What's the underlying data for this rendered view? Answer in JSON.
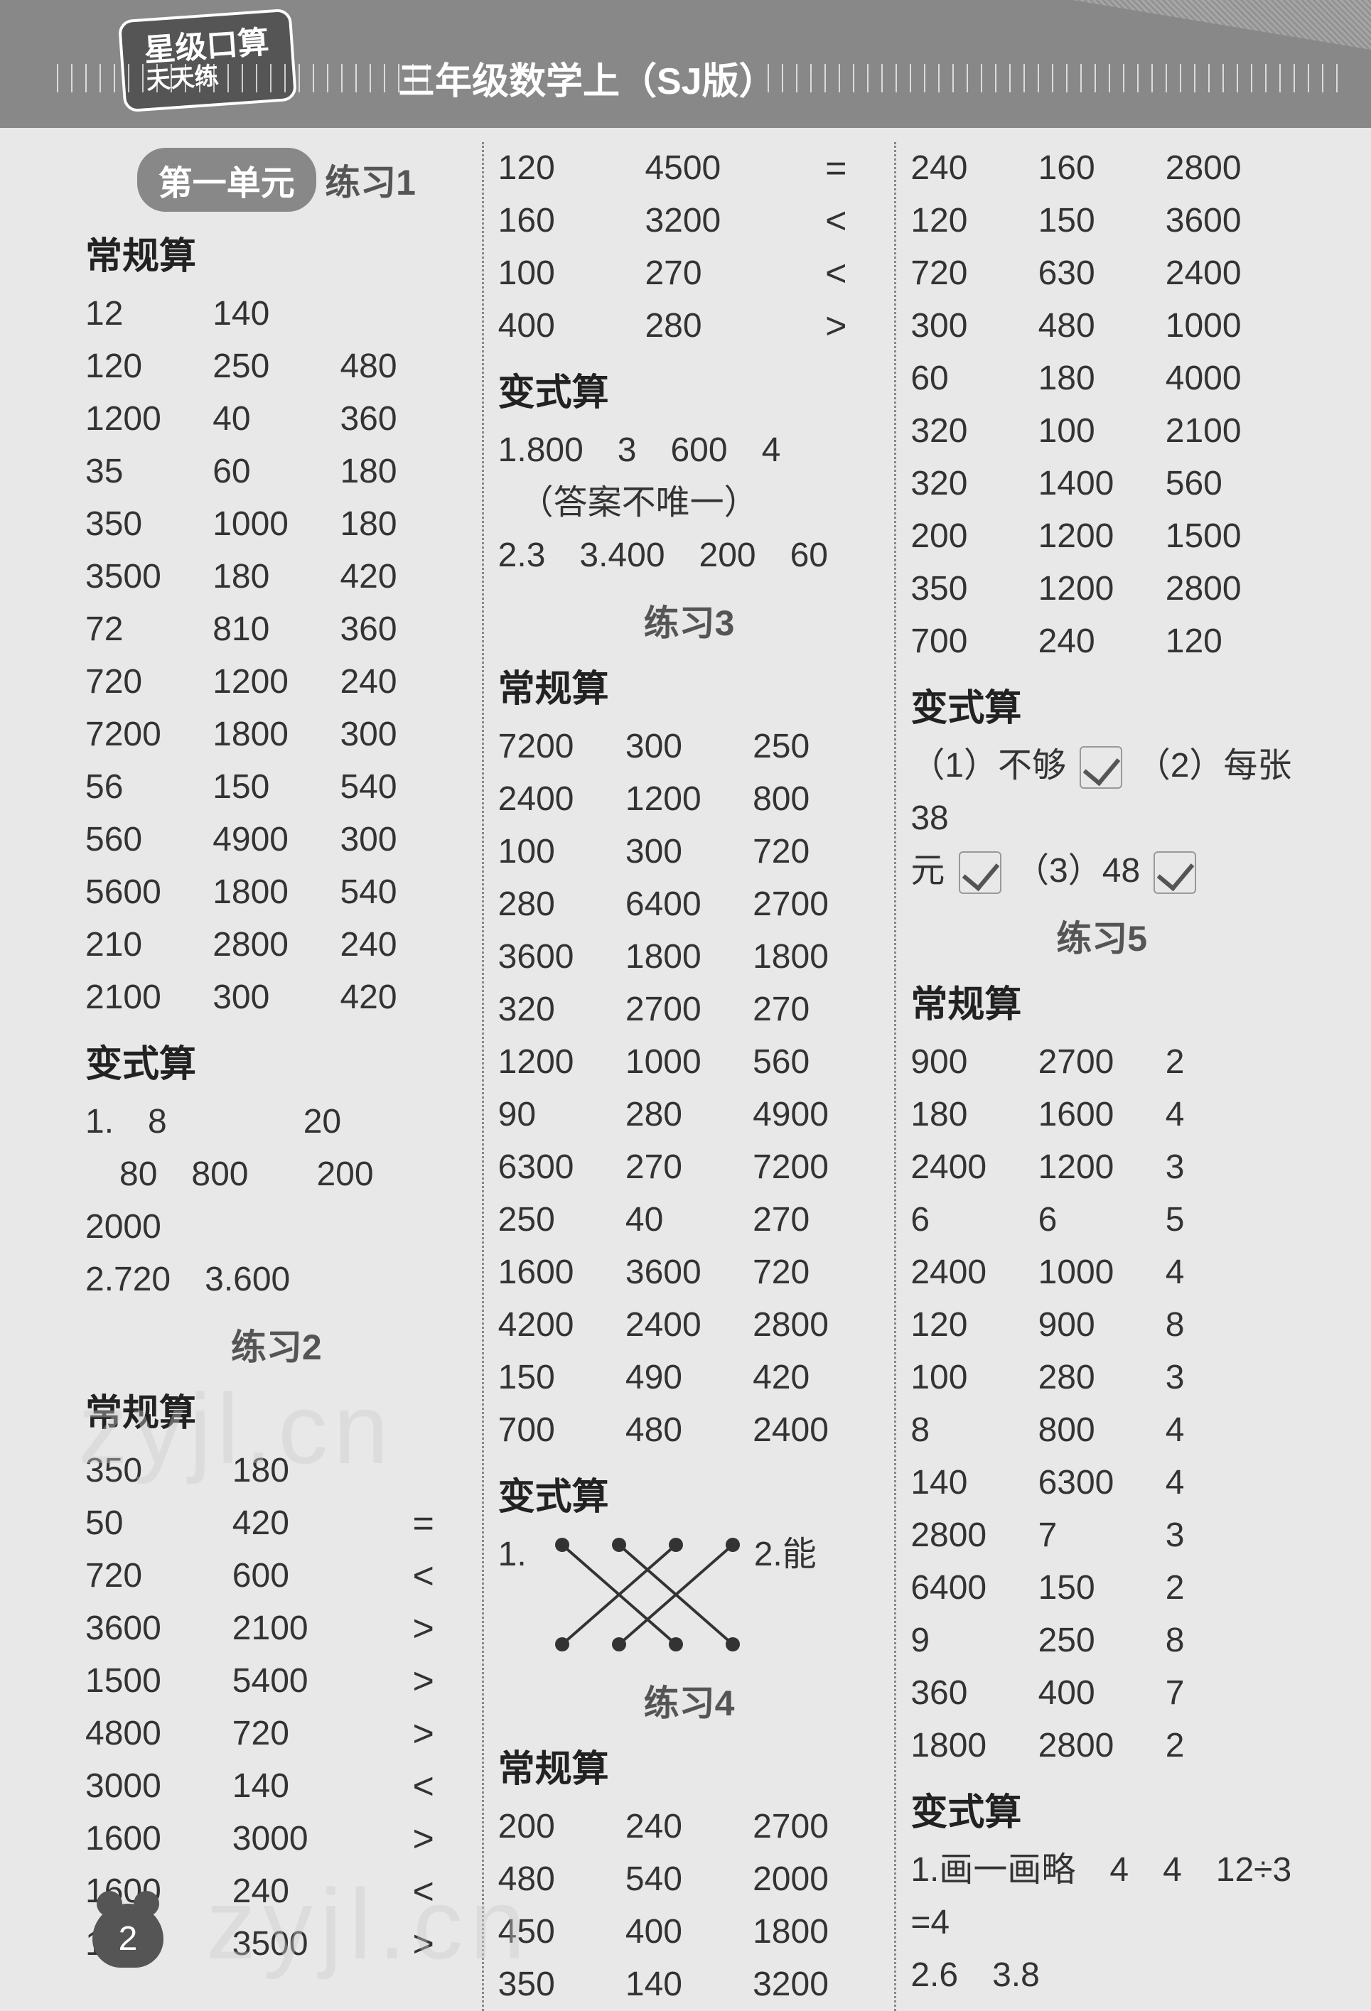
{
  "header": {
    "badge_line1": "星级口算",
    "badge_line2": "天天练",
    "title": "三年级数学上（SJ版）"
  },
  "unit_badge": "第一单元",
  "practice1": "练习1",
  "practice2": "练习2",
  "practice3": "练习3",
  "practice4": "练习4",
  "practice5": "练习5",
  "section_regular": "常规算",
  "section_variant": "变式算",
  "col1": {
    "regular1": [
      [
        "12",
        "140",
        ""
      ],
      [
        "120",
        "250",
        "480"
      ],
      [
        "1200",
        "40",
        "360"
      ],
      [
        "35",
        "60",
        "180"
      ],
      [
        "350",
        "1000",
        "180"
      ],
      [
        "3500",
        "180",
        "420"
      ],
      [
        "72",
        "810",
        "360"
      ],
      [
        "720",
        "1200",
        "240"
      ],
      [
        "7200",
        "1800",
        "300"
      ],
      [
        "56",
        "150",
        "540"
      ],
      [
        "560",
        "4900",
        "300"
      ],
      [
        "5600",
        "1800",
        "540"
      ],
      [
        "210",
        "2800",
        "240"
      ],
      [
        "2100",
        "300",
        "420"
      ]
    ],
    "variant1_l1": "1.　8　　　　20",
    "variant1_l2": "　80　800　　200　2000",
    "variant1_l3": "2.720　3.600",
    "regular2": [
      [
        "350",
        "180",
        ""
      ],
      [
        "50",
        "420",
        "="
      ],
      [
        "720",
        "600",
        "<"
      ],
      [
        "3600",
        "2100",
        ">"
      ],
      [
        "1500",
        "5400",
        ">"
      ],
      [
        "4800",
        "720",
        ">"
      ],
      [
        "3000",
        "140",
        "<"
      ],
      [
        "1600",
        "3000",
        ">"
      ],
      [
        "1600",
        "240",
        "<"
      ],
      [
        "1200",
        "3500",
        ">"
      ]
    ]
  },
  "col2": {
    "top_rows": [
      [
        "120",
        "4500",
        "="
      ],
      [
        "160",
        "3200",
        "<"
      ],
      [
        "100",
        "270",
        "<"
      ],
      [
        "400",
        "280",
        ">"
      ]
    ],
    "variant2_l1": "1.800　3　600　4",
    "variant2_l2": "（答案不唯一）",
    "variant2_l3": "2.3　3.400　200　60",
    "regular3": [
      [
        "7200",
        "300",
        "250"
      ],
      [
        "2400",
        "1200",
        "800"
      ],
      [
        "100",
        "300",
        "720"
      ],
      [
        "280",
        "6400",
        "2700"
      ],
      [
        "3600",
        "1800",
        "1800"
      ],
      [
        "320",
        "2700",
        "270"
      ],
      [
        "1200",
        "1000",
        "560"
      ],
      [
        "90",
        "280",
        "4900"
      ],
      [
        "6300",
        "270",
        "7200"
      ],
      [
        "250",
        "40",
        "270"
      ],
      [
        "1600",
        "3600",
        "720"
      ],
      [
        "4200",
        "2400",
        "2800"
      ],
      [
        "150",
        "490",
        "420"
      ],
      [
        "700",
        "480",
        "2400"
      ]
    ],
    "variant3_label1": "1.",
    "variant3_label2": "2.能",
    "regular4": [
      [
        "200",
        "240",
        "2700"
      ],
      [
        "480",
        "540",
        "2000"
      ],
      [
        "450",
        "400",
        "1800"
      ],
      [
        "350",
        "140",
        "3200"
      ]
    ]
  },
  "col3": {
    "top_rows": [
      [
        "240",
        "160",
        "2800"
      ],
      [
        "120",
        "150",
        "3600"
      ],
      [
        "720",
        "630",
        "2400"
      ],
      [
        "300",
        "480",
        "1000"
      ],
      [
        "60",
        "180",
        "4000"
      ],
      [
        "320",
        "100",
        "2100"
      ],
      [
        "320",
        "1400",
        "560"
      ],
      [
        "200",
        "1200",
        "1500"
      ],
      [
        "350",
        "1200",
        "2800"
      ],
      [
        "700",
        "240",
        "120"
      ]
    ],
    "variant4_a": "（1）不够",
    "variant4_b": "（2）每张 38",
    "variant4_c": "元",
    "variant4_d": "（3）48",
    "regular5": [
      [
        "900",
        "2700",
        "2"
      ],
      [
        "180",
        "1600",
        "4"
      ],
      [
        "2400",
        "1200",
        "3"
      ],
      [
        "6",
        "6",
        "5"
      ],
      [
        "2400",
        "1000",
        "4"
      ],
      [
        "120",
        "900",
        "8"
      ],
      [
        "100",
        "280",
        "3"
      ],
      [
        "8",
        "800",
        "4"
      ],
      [
        "140",
        "6300",
        "4"
      ],
      [
        "2800",
        "7",
        "3"
      ],
      [
        "6400",
        "150",
        "2"
      ],
      [
        "9",
        "250",
        "8"
      ],
      [
        "360",
        "400",
        "7"
      ],
      [
        "1800",
        "2800",
        "2"
      ]
    ],
    "variant5_l1": "1.画一画略　4　4　12÷3 =4",
    "variant5_l2": "2.6　3.8"
  },
  "page_number": "2",
  "watermark": "zyjl.cn",
  "colors": {
    "header_bg": "#888888",
    "text": "#3a3a3a",
    "badge_bg": "#888888",
    "page_bg": "#e8e8e8"
  }
}
